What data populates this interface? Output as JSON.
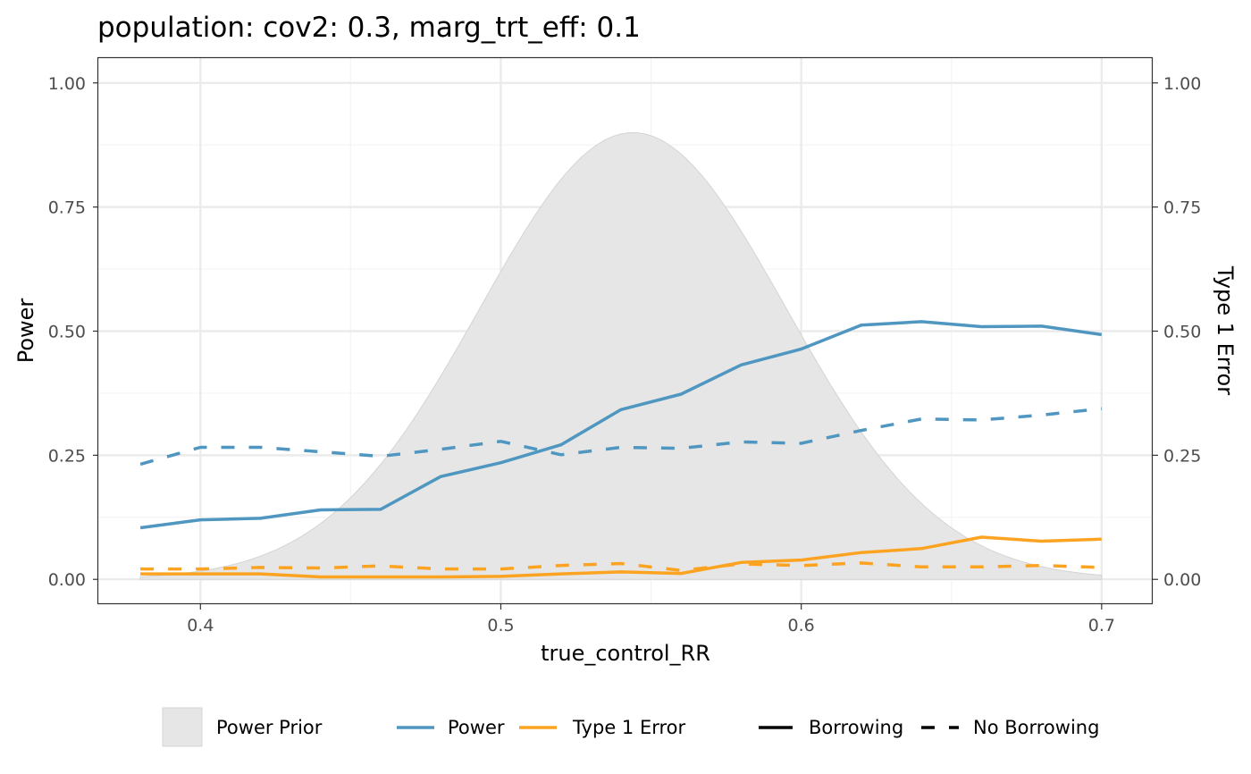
{
  "colors": {
    "power": "#4f97c0",
    "type1": "#fca322",
    "prior_fill": "#e6e6e6",
    "prior_stroke": "#d4d4d4",
    "grid_major": "#ebebeb",
    "grid_minor": "#f4f4f4",
    "panel_border": "#333333",
    "tick_text": "#4d4d4d"
  },
  "chart_data": {
    "type": "line",
    "title": "population: cov2: 0.3, marg_trt_eff: 0.1",
    "xlabel": "true_control_RR",
    "ylabel": "Power",
    "ylabel_right": "Type 1 Error",
    "xlim": [
      0.366,
      0.717
    ],
    "ylim": [
      -0.05,
      1.05
    ],
    "x_ticks": [
      0.4,
      0.5,
      0.6,
      0.7
    ],
    "x_tick_labels": [
      "0.4",
      "0.5",
      "0.6",
      "0.7"
    ],
    "y_ticks": [
      0,
      0.25,
      0.5,
      0.75,
      1.0
    ],
    "y_tick_labels": [
      "0.00",
      "0.25",
      "0.50",
      "0.75",
      "1.00"
    ],
    "grid": true,
    "legend_position": "bottom",
    "x": [
      0.38,
      0.4,
      0.42,
      0.44,
      0.46,
      0.48,
      0.5,
      0.52,
      0.54,
      0.56,
      0.58,
      0.6,
      0.62,
      0.64,
      0.66,
      0.68,
      0.7
    ],
    "series": [
      {
        "name": "Power",
        "borrowing": true,
        "color_key": "power",
        "linetype": "solid",
        "values": [
          0.104,
          0.12,
          0.123,
          0.14,
          0.141,
          0.207,
          0.235,
          0.271,
          0.342,
          0.373,
          0.432,
          0.464,
          0.512,
          0.519,
          0.509,
          0.51,
          0.493
        ]
      },
      {
        "name": "Power",
        "borrowing": false,
        "color_key": "power",
        "linetype": "dashed",
        "values": [
          0.232,
          0.266,
          0.266,
          0.257,
          0.248,
          0.262,
          0.278,
          0.251,
          0.266,
          0.264,
          0.277,
          0.274,
          0.3,
          0.323,
          0.321,
          0.331,
          0.344
        ]
      },
      {
        "name": "Type 1 Error",
        "borrowing": true,
        "color_key": "type1",
        "linetype": "solid",
        "values": [
          0.011,
          0.011,
          0.011,
          0.005,
          0.005,
          0.005,
          0.006,
          0.011,
          0.015,
          0.012,
          0.034,
          0.039,
          0.054,
          0.062,
          0.085,
          0.077,
          0.081
        ]
      },
      {
        "name": "Type 1 Error",
        "borrowing": false,
        "color_key": "type1",
        "linetype": "dashed",
        "values": [
          0.021,
          0.021,
          0.024,
          0.023,
          0.027,
          0.021,
          0.021,
          0.028,
          0.032,
          0.018,
          0.031,
          0.028,
          0.033,
          0.025,
          0.025,
          0.028,
          0.024
        ]
      }
    ],
    "power_prior": {
      "name": "Power Prior",
      "x_range": [
        0.38,
        0.7
      ],
      "peak_x": 0.544,
      "peak_height": 0.9,
      "sd": 0.051
    },
    "legend": {
      "prior_label": "Power Prior",
      "power_label": "Power",
      "type1_label": "Type 1 Error",
      "borrowing_label": "Borrowing",
      "no_borrowing_label": "No Borrowing"
    }
  }
}
